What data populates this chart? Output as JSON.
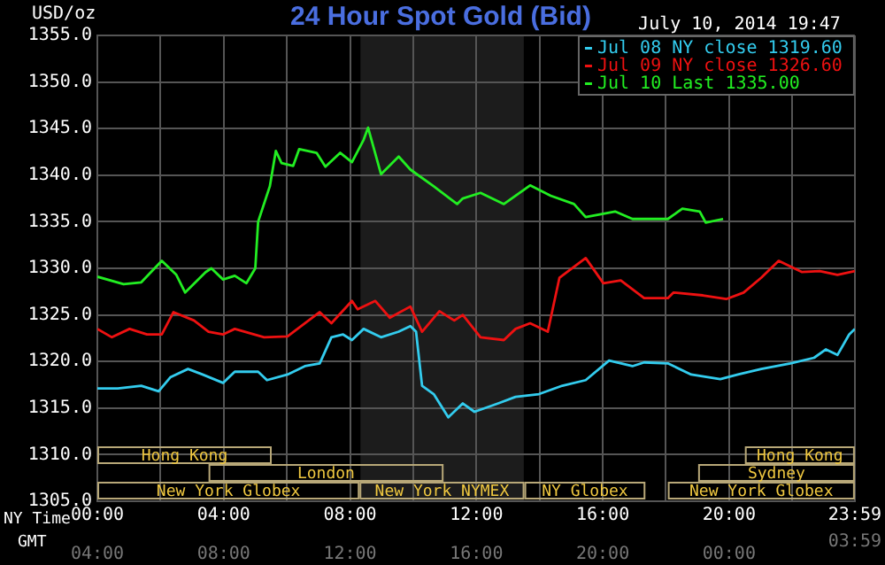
{
  "chart_data": {
    "type": "line",
    "title": "24 Hour Spot Gold (Bid)",
    "subtitle": "July 10, 2014 19:47",
    "ylabel": "USD/oz",
    "xlabel": "NY Time",
    "x2label": "GMT",
    "xlim": [
      0,
      23.98
    ],
    "xticks": [
      {
        "value": 0,
        "label": "00:00"
      },
      {
        "value": 2,
        "label": null
      },
      {
        "value": 4,
        "label": "04:00"
      },
      {
        "value": 6,
        "label": null
      },
      {
        "value": 8,
        "label": "08:00"
      },
      {
        "value": 10,
        "label": null
      },
      {
        "value": 12,
        "label": "12:00"
      },
      {
        "value": 14,
        "label": null
      },
      {
        "value": 16,
        "label": "16:00"
      },
      {
        "value": 18,
        "label": null
      },
      {
        "value": 20,
        "label": "20:00"
      },
      {
        "value": 22,
        "label": null
      },
      {
        "value": 23.98,
        "label": "23:59"
      }
    ],
    "x2lim": [
      4,
      27.98
    ],
    "x2ticks": [
      {
        "value": 4,
        "label": "04:00"
      },
      {
        "value": 8,
        "label": "08:00"
      },
      {
        "value": 12,
        "label": "12:00"
      },
      {
        "value": 16,
        "label": "16:00"
      },
      {
        "value": 20,
        "label": "20:00"
      },
      {
        "value": 24,
        "label": "00:00"
      },
      {
        "value": 27.98,
        "label": null
      }
    ],
    "ylim": [
      1305,
      1355
    ],
    "yticks": [
      {
        "value": 1305,
        "label": "1305.0"
      },
      {
        "value": 1310,
        "label": "1310.0"
      },
      {
        "value": 1315,
        "label": "1315.0"
      },
      {
        "value": 1320,
        "label": "1320.0"
      },
      {
        "value": 1325,
        "label": "1325.0"
      },
      {
        "value": 1330,
        "label": "1330.0"
      },
      {
        "value": 1335,
        "label": "1335.0"
      },
      {
        "value": 1340,
        "label": "1340.0"
      },
      {
        "value": 1345,
        "label": "1345.0"
      },
      {
        "value": 1350,
        "label": "1350.0"
      },
      {
        "value": 1355,
        "label": "1355.0"
      }
    ],
    "grid": true,
    "legend": "top right",
    "marker": "none",
    "line_style": "solid",
    "bands": [
      {
        "axis": "x",
        "from": 8.33,
        "to": 13.5,
        "color": "#1c1c1c"
      }
    ],
    "annotations": [
      "Hong Kong",
      "London",
      "New York Globex",
      "New York NYMEX",
      "NY Globex",
      "Hong Kong",
      "Sydney",
      "New York Globex",
      "03:59"
    ],
    "series": [
      {
        "name": "Jul 08 NY close 1319.60",
        "color": "#33ccee",
        "x": [
          0,
          0.65,
          1.39,
          1.94,
          2.31,
          2.87,
          3.33,
          3.98,
          4.35,
          5.09,
          5.37,
          6.02,
          6.57,
          7.04,
          7.41,
          7.78,
          8.06,
          8.43,
          8.98,
          9.54,
          9.91,
          10.09,
          10.28,
          10.65,
          11.11,
          11.57,
          11.94,
          12.69,
          13.24,
          13.98,
          14.72,
          15.46,
          16.2,
          16.94,
          17.31,
          18.06,
          18.8,
          19.72,
          20.28,
          21.02,
          21.94,
          22.69,
          23.06,
          23.43,
          23.8,
          23.98
        ],
        "values": [
          1317.1,
          1317.1,
          1317.4,
          1316.8,
          1318.3,
          1319.2,
          1318.6,
          1317.7,
          1318.9,
          1318.9,
          1318,
          1318.6,
          1319.5,
          1319.8,
          1322.6,
          1322.9,
          1322.3,
          1323.5,
          1322.6,
          1323.2,
          1323.8,
          1323.2,
          1317.4,
          1316.5,
          1314,
          1315.5,
          1314.6,
          1315.5,
          1316.2,
          1316.5,
          1317.4,
          1318,
          1320.1,
          1319.5,
          1319.9,
          1319.8,
          1318.6,
          1318.1,
          1318.6,
          1319.2,
          1319.8,
          1320.4,
          1321.3,
          1320.7,
          1322.9,
          1323.5
        ]
      },
      {
        "name": "Jul 09 NY close 1326.60",
        "color": "#ee1111",
        "x": [
          0,
          0.46,
          1.02,
          1.57,
          2.04,
          2.41,
          3.06,
          3.52,
          3.98,
          4.35,
          5.28,
          6.02,
          7.04,
          7.41,
          8.06,
          8.24,
          8.8,
          9.26,
          9.91,
          10.28,
          10.83,
          11.3,
          11.57,
          12.13,
          12.87,
          13.24,
          13.7,
          14.26,
          14.63,
          15.46,
          16.02,
          16.57,
          17.31,
          18.06,
          18.24,
          19.17,
          19.91,
          20.46,
          21.02,
          21.57,
          22.31,
          22.87,
          23.43,
          23.98
        ],
        "values": [
          1323.5,
          1322.6,
          1323.5,
          1322.9,
          1322.9,
          1325.3,
          1324.4,
          1323.2,
          1322.9,
          1323.5,
          1322.6,
          1322.7,
          1325.3,
          1324.1,
          1326.5,
          1325.6,
          1326.5,
          1324.7,
          1325.9,
          1323.2,
          1325.4,
          1324.4,
          1325,
          1322.6,
          1322.3,
          1323.5,
          1324.1,
          1323.2,
          1329,
          1331.1,
          1328.4,
          1328.7,
          1326.8,
          1326.8,
          1327.4,
          1327.1,
          1326.7,
          1327.4,
          1329,
          1330.8,
          1329.6,
          1329.7,
          1329.3,
          1329.7
        ]
      },
      {
        "name": "Jul 10 Last 1335.00",
        "color": "#22ee22",
        "x": [
          0,
          0.83,
          1.39,
          2.04,
          2.5,
          2.78,
          3.43,
          3.61,
          3.98,
          4.35,
          4.72,
          5.0,
          5.09,
          5.46,
          5.65,
          5.83,
          6.2,
          6.39,
          6.94,
          7.22,
          7.69,
          8.06,
          8.43,
          8.57,
          8.98,
          9.54,
          9.91,
          10.65,
          11.39,
          11.57,
          12.13,
          12.87,
          13.7,
          14.35,
          15.09,
          15.46,
          16.39,
          16.94,
          18.06,
          18.52,
          19.07,
          19.26,
          19.81
        ],
        "values": [
          1329.1,
          1328.3,
          1328.5,
          1330.8,
          1329.3,
          1327.4,
          1329.6,
          1330,
          1328.8,
          1329.2,
          1328.4,
          1330,
          1335,
          1338.8,
          1342.6,
          1341.3,
          1341,
          1342.8,
          1342.4,
          1340.9,
          1342.4,
          1341.4,
          1343.8,
          1345.1,
          1340.1,
          1342,
          1340.6,
          1338.8,
          1336.9,
          1337.5,
          1338.1,
          1336.9,
          1338.9,
          1337.8,
          1336.9,
          1335.5,
          1336.1,
          1335.3,
          1335.3,
          1336.4,
          1336.1,
          1334.9,
          1335.3
        ]
      }
    ]
  }
}
